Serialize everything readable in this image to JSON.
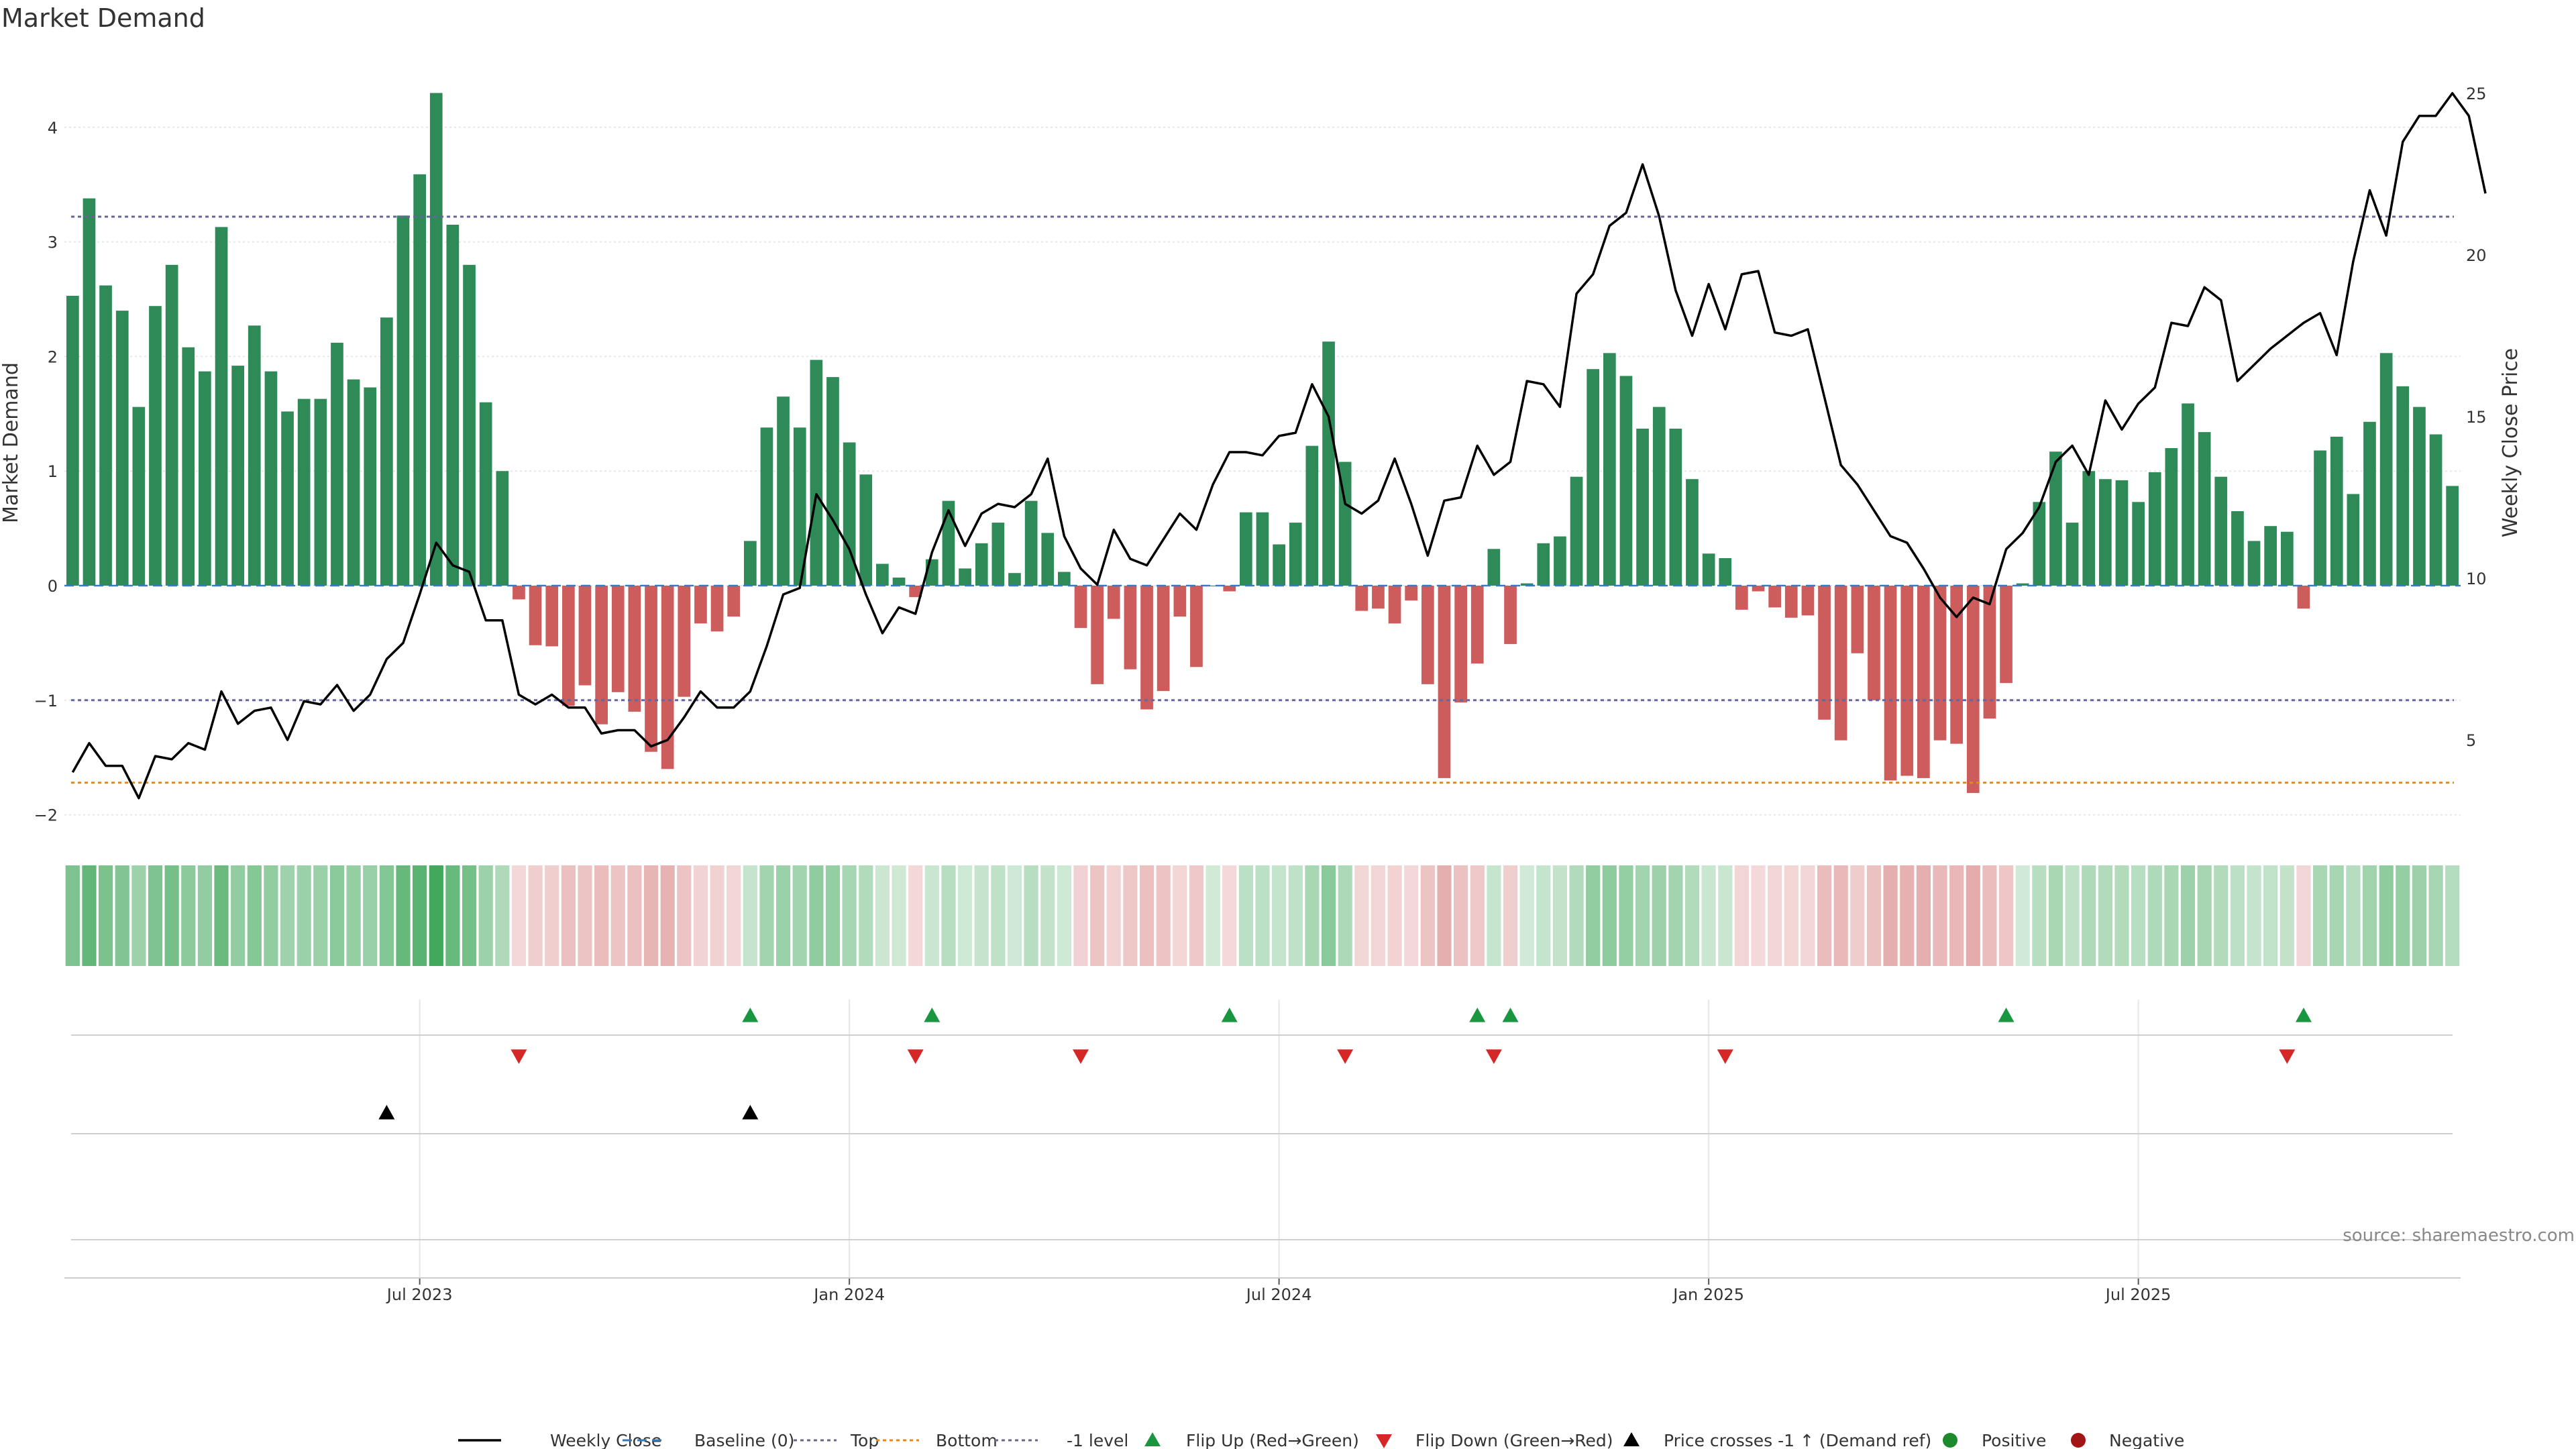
{
  "chart_data": {
    "type": "bar",
    "title": "Market Demand",
    "ylabel_left": "Market Demand",
    "ylabel_right": "Weekly Close Price",
    "ylim_left": [
      -2.2,
      4.5
    ],
    "ylim_right": [
      2.2,
      27
    ],
    "yticks_left": [
      4,
      3,
      2,
      1,
      0,
      -1,
      -2
    ],
    "ytick_labels_left": [
      "4",
      "3",
      "2",
      "1",
      "0",
      "−1",
      "−2"
    ],
    "yticks_right": [
      25,
      20,
      15,
      10,
      5
    ],
    "ytick_labels_right": [
      "25",
      "20",
      "15",
      "10",
      "5"
    ],
    "x_ticks": [
      {
        "label": "Jul 2023",
        "index": 21
      },
      {
        "label": "Jan 2024",
        "index": 47
      },
      {
        "label": "Jul 2024",
        "index": 73
      },
      {
        "label": "Jan 2025",
        "index": 99
      },
      {
        "label": "Jul 2025",
        "index": 125
      }
    ],
    "reference_lines": {
      "top": 3.22,
      "bottom": -1.72,
      "minus_one": -1,
      "baseline": 0
    },
    "demand": [
      2.53,
      3.38,
      2.62,
      2.4,
      1.56,
      2.44,
      2.8,
      2.08,
      1.87,
      3.13,
      1.92,
      2.27,
      1.87,
      1.52,
      1.63,
      1.63,
      2.12,
      1.8,
      1.73,
      2.34,
      3.23,
      3.59,
      4.3,
      3.15,
      2.8,
      1.6,
      1.0,
      -0.12,
      -0.52,
      -0.53,
      -1.05,
      -0.87,
      -1.21,
      -0.93,
      -1.1,
      -1.45,
      -1.6,
      -0.97,
      -0.33,
      -0.4,
      -0.27,
      0.39,
      1.38,
      1.65,
      1.38,
      1.97,
      1.82,
      1.25,
      0.97,
      0.19,
      0.07,
      -0.1,
      0.23,
      0.74,
      0.15,
      0.37,
      0.55,
      0.11,
      0.74,
      0.46,
      0.12,
      -0.37,
      -0.86,
      -0.29,
      -0.73,
      -1.08,
      -0.92,
      -0.27,
      -0.71,
      0.0,
      -0.05,
      0.64,
      0.64,
      0.36,
      0.55,
      1.22,
      2.13,
      1.08,
      -0.22,
      -0.2,
      -0.33,
      -0.13,
      -0.86,
      -1.68,
      -1.02,
      -0.68,
      0.32,
      -0.51,
      0.02,
      0.37,
      0.43,
      0.95,
      1.89,
      2.03,
      1.83,
      1.37,
      1.56,
      1.37,
      0.93,
      0.28,
      0.24,
      -0.21,
      -0.05,
      -0.19,
      -0.28,
      -0.26,
      -1.17,
      -1.35,
      -0.59,
      -1.0,
      -1.7,
      -1.66,
      -1.68,
      -1.35,
      -1.38,
      -1.81,
      -1.16,
      -0.85,
      0.02,
      0.73,
      1.17,
      0.55,
      1.0,
      0.93,
      0.92,
      0.73,
      0.99,
      1.2,
      1.59,
      1.34,
      0.95,
      0.65,
      0.39,
      0.52,
      0.47,
      -0.2,
      1.18,
      1.3,
      0.8,
      1.43,
      2.03,
      1.74,
      1.56,
      1.32,
      0.87
    ],
    "price": [
      4.0,
      4.9,
      4.2,
      4.2,
      3.2,
      4.5,
      4.4,
      4.9,
      4.7,
      6.5,
      5.5,
      5.9,
      6.0,
      5.0,
      6.2,
      6.1,
      6.7,
      5.9,
      6.4,
      7.5,
      8.0,
      9.5,
      11.1,
      10.4,
      10.2,
      8.7,
      8.7,
      6.4,
      6.1,
      6.4,
      6.0,
      6.0,
      5.2,
      5.3,
      5.3,
      4.8,
      5.0,
      5.7,
      6.5,
      6.0,
      6.0,
      6.5,
      7.9,
      9.5,
      9.7,
      12.6,
      11.8,
      10.9,
      9.5,
      8.3,
      9.1,
      8.9,
      10.8,
      12.1,
      11.0,
      12.0,
      12.3,
      12.2,
      12.6,
      13.7,
      11.3,
      10.3,
      9.8,
      11.5,
      10.6,
      10.4,
      11.2,
      12.0,
      11.5,
      12.9,
      13.9,
      13.9,
      13.8,
      14.4,
      14.5,
      16.0,
      15.0,
      12.3,
      12.0,
      12.4,
      13.7,
      12.3,
      10.7,
      12.4,
      12.5,
      14.1,
      13.2,
      13.6,
      16.1,
      16.0,
      15.3,
      18.8,
      19.4,
      20.9,
      21.3,
      22.8,
      21.2,
      18.9,
      17.5,
      19.1,
      17.7,
      19.4,
      19.5,
      17.6,
      17.5,
      17.7,
      15.6,
      13.5,
      12.9,
      12.1,
      11.3,
      11.1,
      10.3,
      9.4,
      8.8,
      9.4,
      9.2,
      10.9,
      11.4,
      12.2,
      13.6,
      14.1,
      13.2,
      15.5,
      14.6,
      15.4,
      15.9,
      17.9,
      17.8,
      19.0,
      18.6,
      16.1,
      16.6,
      17.1,
      17.5,
      17.9,
      18.2,
      16.9,
      19.8,
      22.0,
      20.6,
      23.5,
      24.3,
      24.3,
      25.0,
      24.3,
      21.9
    ],
    "heat_strip": {
      "label": ""
    },
    "events": {
      "flip_up_indices": [
        41,
        52,
        70,
        85,
        87,
        117,
        135
      ],
      "flip_down_indices": [
        27,
        51,
        61,
        77,
        86,
        100,
        134
      ],
      "price_cross_up_indices": [
        19,
        41
      ]
    },
    "legend": [
      {
        "label": "Weekly Close",
        "kind": "line",
        "color": "#000000"
      },
      {
        "label": "Baseline (0)",
        "kind": "dashed",
        "color": "#3a7ab8"
      },
      {
        "label": "Top",
        "kind": "dotted",
        "color": "#666699"
      },
      {
        "label": "Bottom",
        "kind": "dotted",
        "color": "#e08a1e"
      },
      {
        "label": "-1 level",
        "kind": "dotted",
        "color": "#666699"
      },
      {
        "label": "Flip Up (Red→Green)",
        "kind": "tri-up",
        "color": "#1a9641"
      },
      {
        "label": "Flip Down (Green→Red)",
        "kind": "tri-down",
        "color": "#d62728"
      },
      {
        "label": "Price crosses -1 ↑ (Demand ref)",
        "kind": "tri-up",
        "color": "#000000"
      },
      {
        "label": "Positive",
        "kind": "dot",
        "color": "#1e8a2e"
      },
      {
        "label": "Negative",
        "kind": "dot",
        "color": "#a31515"
      }
    ],
    "colors": {
      "positive_bar": "#2e8b57",
      "negative_bar": "#cd5c5c",
      "positive_strip": "#2e9e4a",
      "negative_strip": "#cd5c5c",
      "price_line": "#000000",
      "top_line": "#666699",
      "bottom_line": "#e08a1e",
      "baseline": "#3a7ab8"
    },
    "source": "source: sharemaestro.com"
  }
}
